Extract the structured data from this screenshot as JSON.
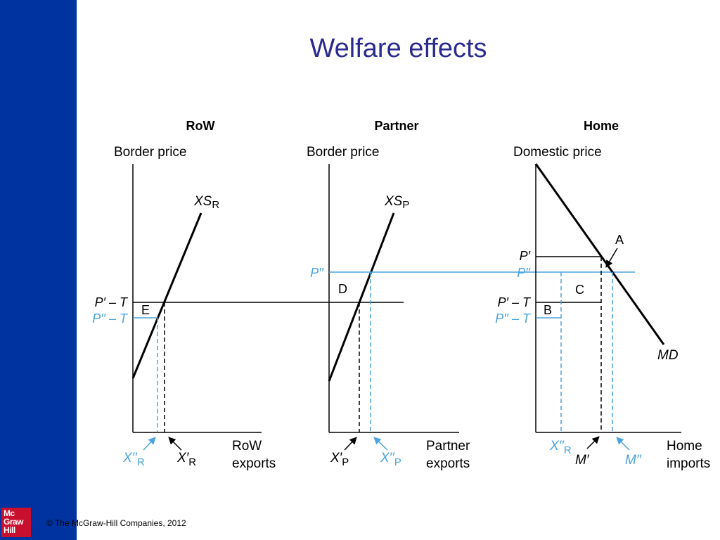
{
  "slide": {
    "title": "Welfare effects",
    "copyright": "© The McGraw-Hill Companies, 2012",
    "logo_lines": [
      "Mc",
      "Graw",
      "Hill"
    ]
  },
  "colors": {
    "sidebar": "#0033a0",
    "title": "#2b2b8f",
    "blue_lines": "#4aa3df",
    "black": "#000000",
    "logo": "#c8102e"
  },
  "panels": {
    "row": {
      "heading": "RoW",
      "y_axis": "Border price",
      "x_axis": [
        "RoW",
        "exports"
      ],
      "curve": {
        "main": "XS",
        "sub": "R"
      },
      "labels": {
        "p_prime_t": "P′ – T",
        "p_dprime_t": "P′′ – T",
        "area_e": "E",
        "x_dprime": {
          "main": "X′′",
          "sub": "R"
        },
        "x_prime": {
          "main": "X′",
          "sub": "R"
        }
      }
    },
    "partner": {
      "heading": "Partner",
      "y_axis": "Border price",
      "x_axis": [
        "Partner",
        "exports"
      ],
      "curve": {
        "main": "XS",
        "sub": "P"
      },
      "labels": {
        "p_dprime": "P′′",
        "area_d": "D",
        "x_prime": {
          "main": "X′",
          "sub": "P"
        },
        "x_dprime": {
          "main": "X′′",
          "sub": "P"
        }
      }
    },
    "home": {
      "heading": "Home",
      "y_axis": "Domestic price",
      "x_axis": [
        "Home",
        "imports"
      ],
      "curve": "MD",
      "labels": {
        "p_prime": "P′",
        "p_dprime": "P′′",
        "p_prime_t": "P′ – T",
        "p_dprime_t": "P′′ – T",
        "point_a": "A",
        "area_b": "B",
        "area_c": "C",
        "x_dprime": {
          "main": "X′′",
          "sub": "R"
        },
        "m_prime": "M′",
        "m_dprime": "M′′"
      }
    }
  }
}
